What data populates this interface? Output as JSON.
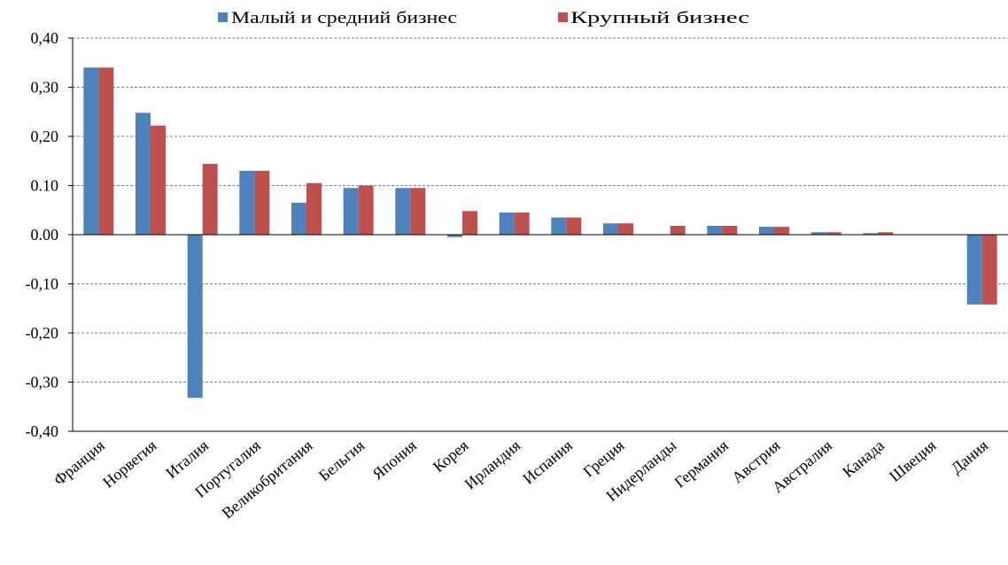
{
  "chart_data": {
    "type": "bar",
    "categories": [
      "Франция",
      "Норвегия",
      "Италия",
      "Португалия",
      "Великобритания",
      "Бельгия",
      "Япония",
      "Корея",
      "Ирландия",
      "Испания",
      "Греция",
      "Нидерланды",
      "Германия",
      "Австрия",
      "Австралия",
      "Канада",
      "Швеция",
      "Дания"
    ],
    "series": [
      {
        "name": "Малый и средний бизнес",
        "color": "#4F81BD",
        "values": [
          0.34,
          0.248,
          -0.332,
          0.13,
          0.065,
          0.095,
          0.095,
          -0.005,
          0.045,
          0.035,
          0.023,
          0.0,
          0.018,
          0.016,
          0.005,
          0.003,
          0.0,
          -0.142
        ]
      },
      {
        "name": "Крупный бизнес",
        "color": "#C0504D",
        "values": [
          0.34,
          0.222,
          0.144,
          0.13,
          0.105,
          0.1,
          0.095,
          0.048,
          0.045,
          0.035,
          0.023,
          0.018,
          0.018,
          0.016,
          0.005,
          0.005,
          0.0,
          -0.142
        ]
      }
    ],
    "y_ticks": [
      "0,40",
      "0,30",
      "0,20",
      "0.10",
      "0.00",
      "-0,10",
      "-0,20",
      "-0,30",
      "-0,40"
    ],
    "ylim": [
      -0.4,
      0.4
    ],
    "grid": true,
    "legend_position": "top",
    "title": "",
    "xlabel": "",
    "ylabel": ""
  }
}
